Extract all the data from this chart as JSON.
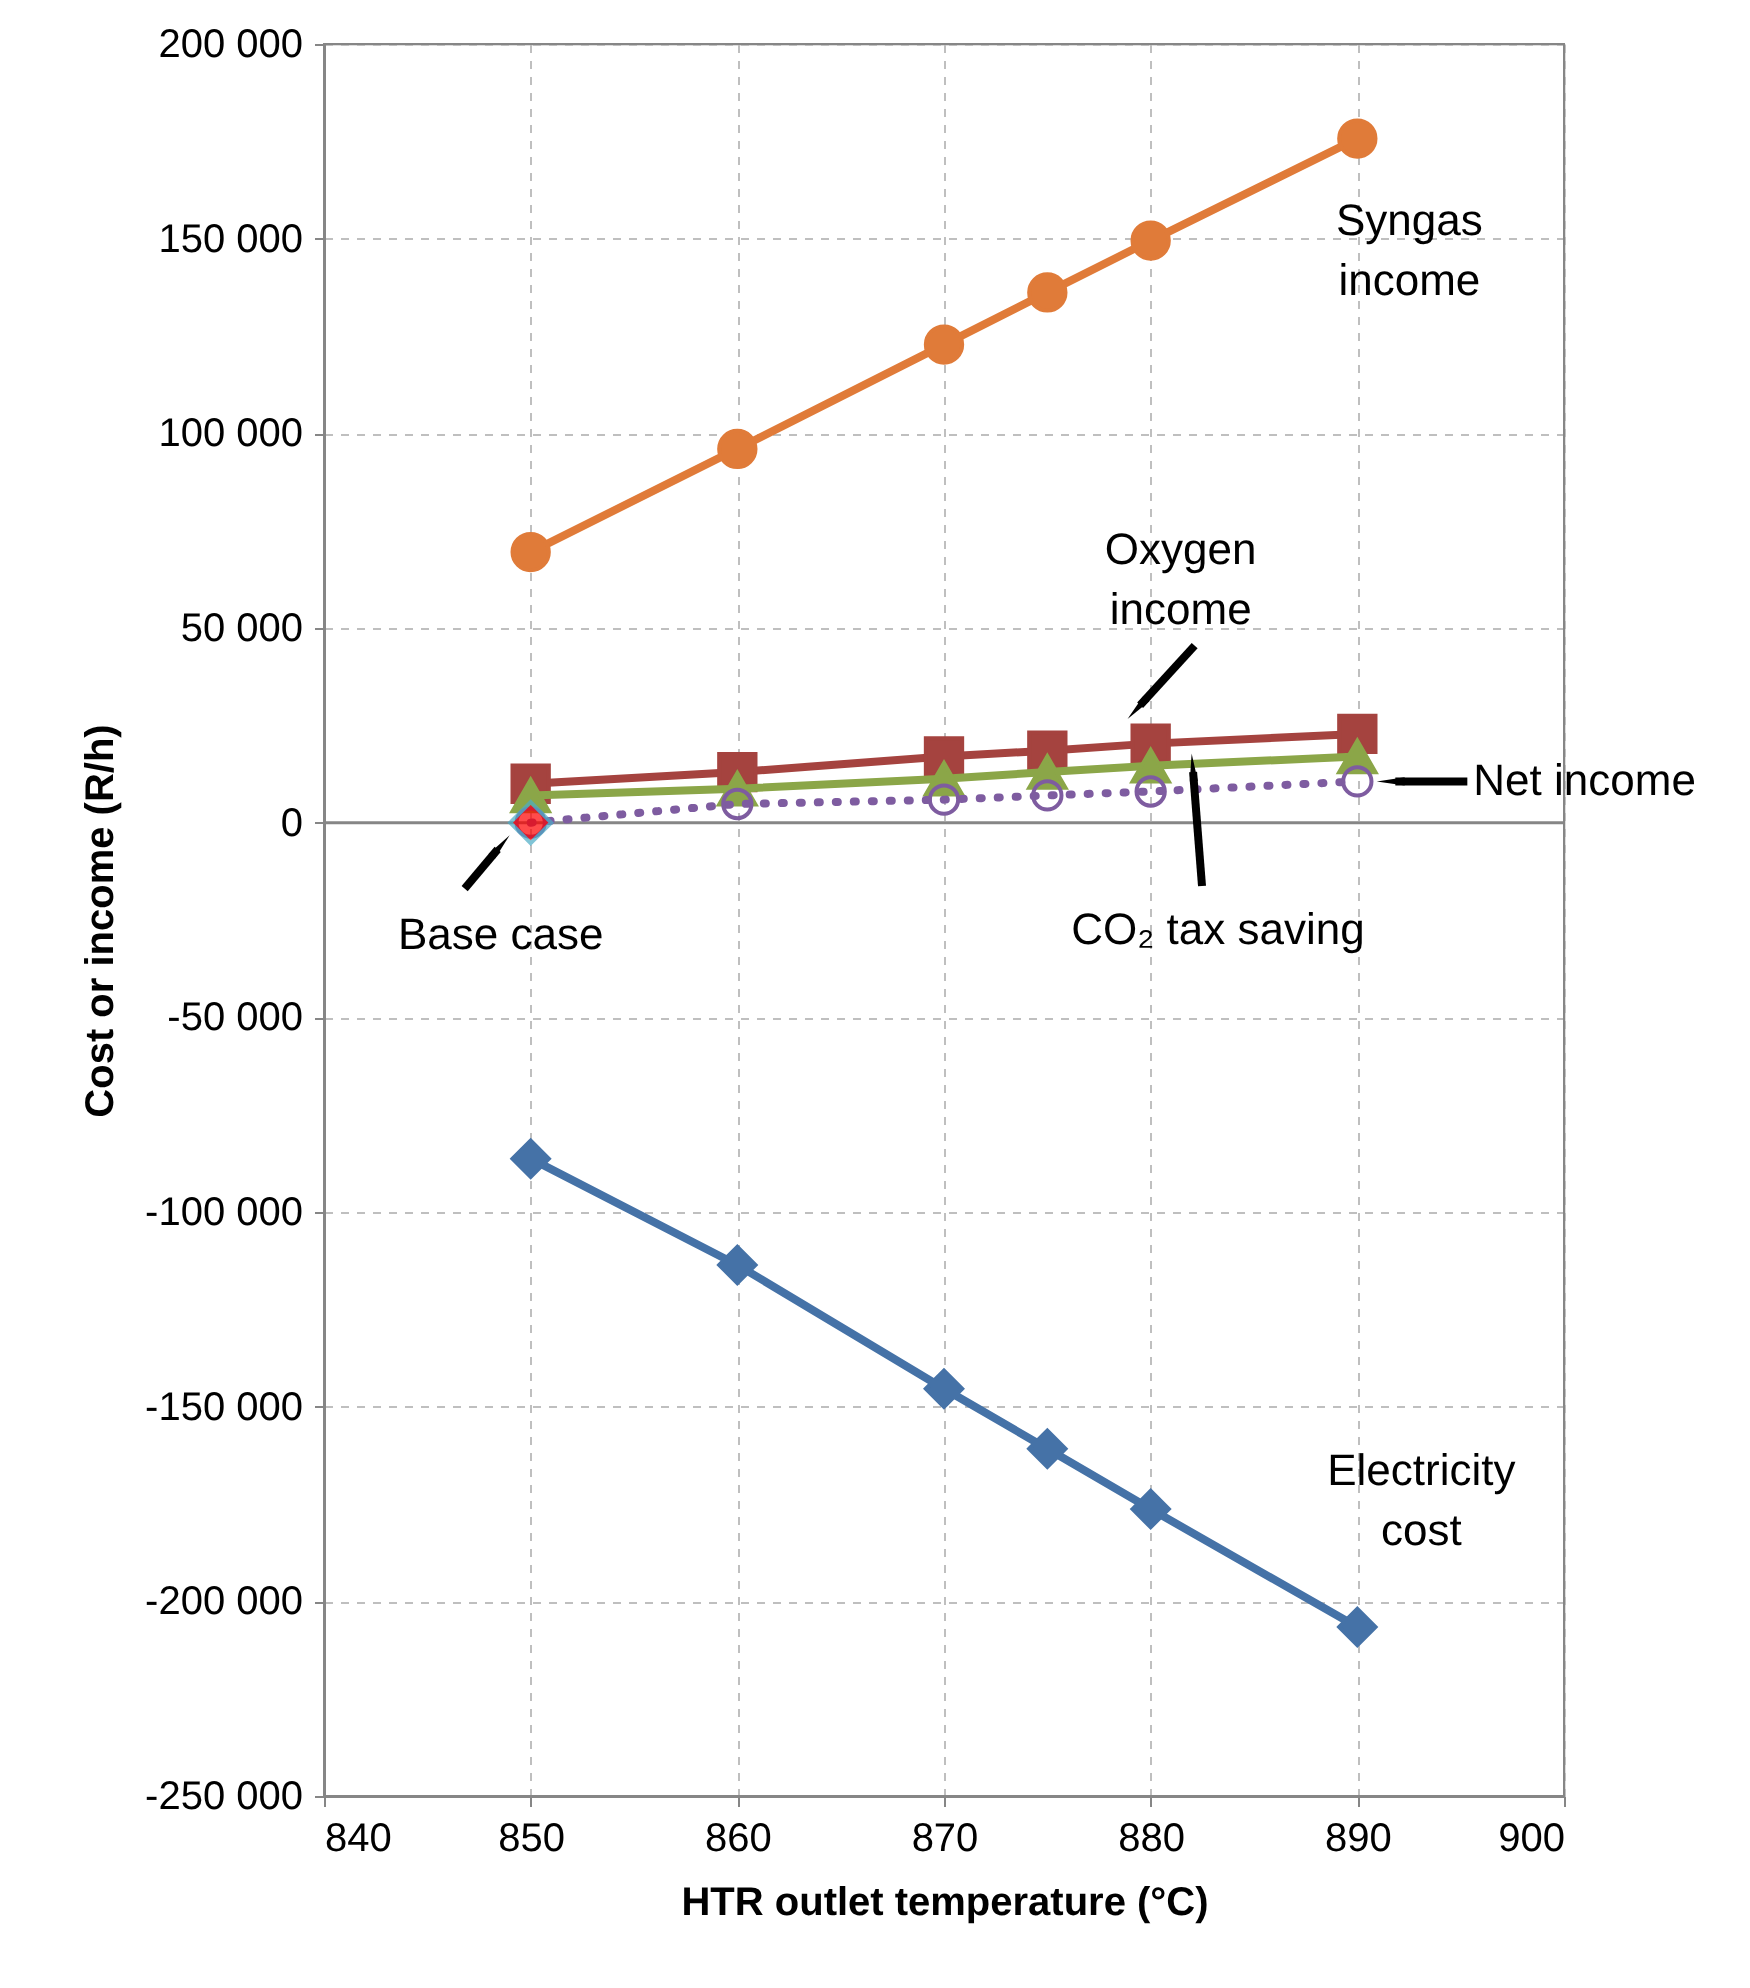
{
  "chart_data": {
    "type": "line",
    "xlabel": "HTR outlet temperature (°C)",
    "ylabel": "Cost or income (R/h)",
    "x": [
      850,
      860,
      870,
      875,
      880,
      890
    ],
    "series": [
      {
        "color": "#E07B39",
        "marker": "circle",
        "line_style": "solid",
        "values": [
          69500,
          96000,
          122800,
          136200,
          149500,
          175700
        ]
      },
      {
        "color": "#A5433F",
        "marker": "square",
        "line_style": "solid",
        "values": [
          10000,
          13000,
          17000,
          18500,
          20300,
          22800
        ]
      },
      {
        "color": "#8BA648",
        "marker": "triangle",
        "line_style": "solid",
        "values": [
          7000,
          8700,
          11300,
          13000,
          14600,
          17000
        ]
      },
      {
        "color": "#7E5CA0",
        "marker": "circle",
        "line_style": "dotted",
        "values": [
          0,
          4800,
          5900,
          7000,
          8000,
          10600
        ]
      },
      {
        "color": "#4572A7",
        "marker": "diamond",
        "line_style": "solid",
        "values": [
          -86300,
          -113600,
          -145400,
          -160800,
          -176300,
          -206600
        ]
      },
      {
        "type": "scatter",
        "color": "#FF0000",
        "marker": "diamond",
        "x": [
          850
        ],
        "values": [
          0
        ]
      }
    ],
    "xlim": [
      840,
      900
    ],
    "xticks": [
      840,
      850,
      860,
      870,
      880,
      890,
      900
    ],
    "ylim": [
      -250000,
      200000
    ],
    "yticks": [
      {
        "value": -250000,
        "label": "-250 000"
      },
      {
        "value": -200000,
        "label": "-200 000"
      },
      {
        "value": -150000,
        "label": "-150 000"
      },
      {
        "value": -100000,
        "label": "-100 000"
      },
      {
        "value": -50000,
        "label": "-50 000"
      },
      0,
      {
        "value": 50000,
        "label": "50 000"
      },
      {
        "value": 100000,
        "label": "100 000"
      },
      {
        "value": 150000,
        "label": "150 000"
      },
      {
        "value": 200000,
        "label": "200 000"
      }
    ],
    "grid": true,
    "ref_lines": [
      {
        "axis": "y",
        "value": 0,
        "color": "#868686"
      }
    ],
    "annotations": [
      {
        "text": "Syngas\nincome",
        "x": 890,
        "y": 175700
      },
      {
        "text": "Oxygen\nincome",
        "x": 880,
        "y": 20300
      },
      {
        "text": "Net income",
        "x": 890,
        "y": 10600
      },
      {
        "text": "CO₂ tax saving",
        "x": 882,
        "y": 16600
      },
      {
        "text": "Base case",
        "x": 850,
        "y": 0
      },
      {
        "text": "Electricity\ncost",
        "x": 890,
        "y": -206600
      }
    ]
  }
}
